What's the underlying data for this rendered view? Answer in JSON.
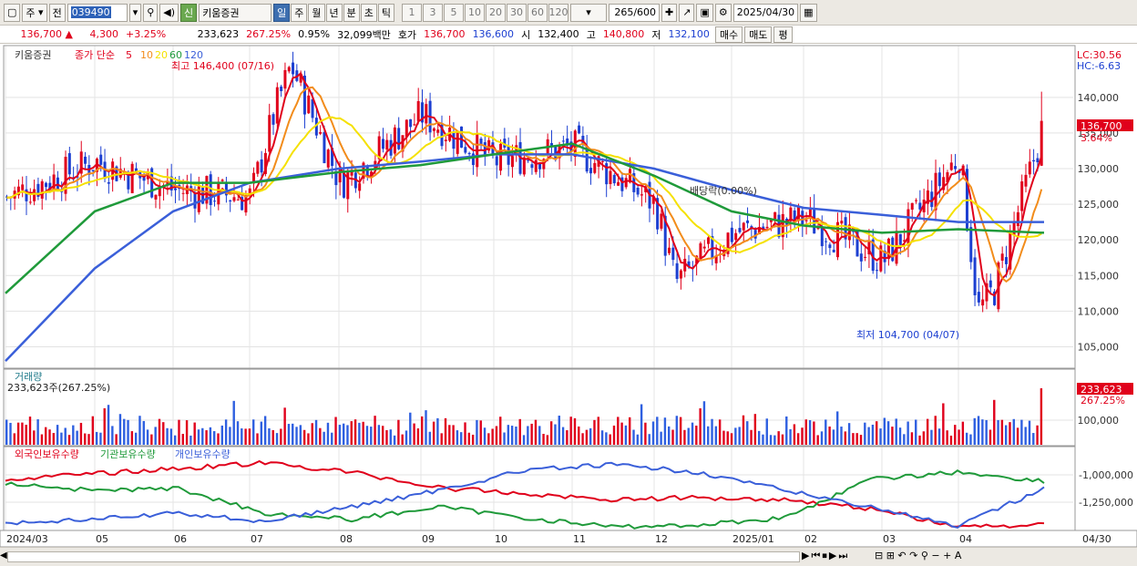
{
  "toolbar": {
    "market": "주",
    "prev": "전",
    "code": "039490",
    "name": "키움증권",
    "periods": [
      "일",
      "주",
      "월",
      "년",
      "분",
      "초",
      "틱"
    ],
    "minutes": [
      "1",
      "3",
      "5",
      "10",
      "20",
      "30",
      "60",
      "120"
    ],
    "count": "265",
    "count_max": "/600",
    "date": "2025/04/30"
  },
  "quote": {
    "price": "136,700 ▲",
    "change": "4,300",
    "pct": "+3.25%",
    "volume": "233,623",
    "vol_ratio": "267.25%",
    "turnover_rate": "0.95%",
    "amount": "32,099백만",
    "ask_label": "호가",
    "ask": "136,700",
    "bid": "136,600",
    "open_label": "시",
    "open": "132,400",
    "high_label": "고",
    "high": "140,800",
    "low_label": "저",
    "low": "132,100",
    "buy": "매수",
    "sell": "매도",
    "eval": "평"
  },
  "legend": {
    "name": "키움증권",
    "price_label": "종가 단순",
    "mas": [
      "5",
      "10",
      "20",
      "60",
      "120"
    ],
    "ma_colors": [
      "#e0001b",
      "#f28c1b",
      "#f5e100",
      "#1f9a3a",
      "#3a5fd9"
    ]
  },
  "annotations": {
    "high": "최고 146,400 (07/16)",
    "low": "최저 104,700 (04/07)",
    "dividend": "배당락(0.00%)",
    "lc": "LC:30.56",
    "hc": "HC:-6.63",
    "last": "136,700",
    "last_pct": "3.64%"
  },
  "volume_panel": {
    "title": "거래량",
    "summary": "233,623주(267.25%)",
    "last": "233,623",
    "last_pct": "267.25%",
    "tick": "100,000"
  },
  "holding_panel": {
    "series": [
      "외국인보유수량",
      "기관보유수량",
      "개인보유수량"
    ],
    "colors": [
      "#e0001b",
      "#1f9a3a",
      "#3a5fd9"
    ],
    "ticks": [
      "-1,000,000",
      "-1,250,000"
    ]
  },
  "xaxis": {
    "labels": [
      "2024/03",
      "05",
      "06",
      "07",
      "08",
      "09",
      "10",
      "11",
      "12",
      "2025/01",
      "02",
      "03",
      "04"
    ],
    "end": "04/30"
  },
  "chart_data": {
    "type": "candlestick",
    "y_ticks": [
      105000,
      110000,
      115000,
      120000,
      125000,
      130000,
      135000,
      140000
    ],
    "ylim": [
      102500,
      146500
    ],
    "series": [
      {
        "name": "키움증권",
        "x": [
          "2024/03",
          "05",
          "06",
          "07",
          "08",
          "09",
          "10",
          "11",
          "12",
          "2025/01",
          "02",
          "03",
          "04",
          "04/30"
        ],
        "close": [
          126000,
          132000,
          128000,
          144000,
          128000,
          138000,
          131000,
          133000,
          121000,
          123000,
          116000,
          118000,
          111000,
          136700
        ]
      },
      {
        "name": "120",
        "values": [
          103000,
          116000,
          124000,
          128000,
          130000,
          131000,
          132000,
          132000,
          130000,
          127000,
          124500,
          123500,
          122500,
          122500
        ]
      },
      {
        "name": "60",
        "values": [
          112500,
          124000,
          128000,
          128000,
          129500,
          130500,
          132000,
          133500,
          129000,
          124000,
          122000,
          121000,
          121500,
          121000
        ]
      }
    ]
  }
}
